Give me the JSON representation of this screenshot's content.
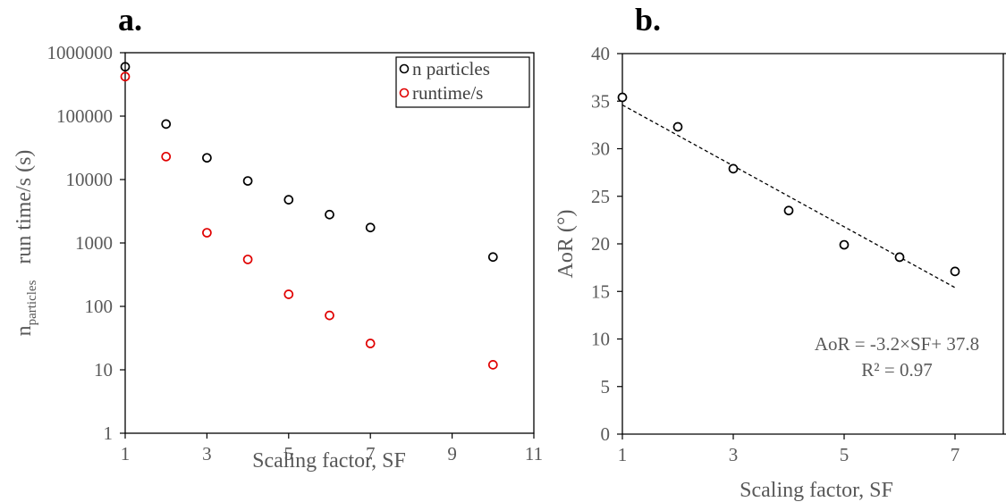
{
  "chart_data": [
    {
      "panel_label": "a.",
      "type": "scatter",
      "xlabel": "Scaling factor, SF",
      "ylabel_main": "n",
      "ylabel_sub": "particles",
      "ylabel_rest": "run time/s (s)",
      "xlim": [
        1,
        11
      ],
      "xticks": [
        1,
        3,
        5,
        7,
        9,
        11
      ],
      "ylim": [
        1,
        1000000
      ],
      "yscale": "log",
      "yticks": [
        1,
        10,
        100,
        1000,
        10000,
        100000,
        1000000
      ],
      "ytick_labels": [
        "1",
        "10",
        "100",
        "1000",
        "10000",
        "100000",
        "1000000"
      ],
      "grid": false,
      "legend_position": "top-right",
      "series": [
        {
          "name": "n particles",
          "color": "#000000",
          "marker": "open-circle",
          "x": [
            1,
            2,
            3,
            4,
            5,
            6,
            7,
            10
          ],
          "y": [
            600000,
            75000,
            22000,
            9500,
            4800,
            2800,
            1750,
            600
          ]
        },
        {
          "name": "runtime/s",
          "color": "#e00000",
          "marker": "open-circle",
          "x": [
            1,
            2,
            3,
            4,
            5,
            6,
            7,
            10
          ],
          "y": [
            420000,
            23000,
            1450,
            550,
            155,
            72,
            26,
            12
          ]
        }
      ]
    },
    {
      "panel_label": "b.",
      "type": "scatter",
      "xlabel": "Scaling factor, SF",
      "ylabel": "AoR (°)",
      "xlim": [
        1,
        8
      ],
      "xticks": [
        1,
        3,
        5,
        7
      ],
      "ylim": [
        0,
        40
      ],
      "yticks": [
        0,
        5,
        10,
        15,
        20,
        25,
        30,
        35,
        40
      ],
      "grid": false,
      "series": [
        {
          "name": "",
          "color": "#000000",
          "marker": "open-circle",
          "x": [
            1,
            2,
            3,
            4,
            5,
            6,
            7
          ],
          "y": [
            35.4,
            32.3,
            27.9,
            23.5,
            19.9,
            18.6,
            17.1
          ]
        }
      ],
      "trendline": {
        "type": "linear",
        "slope": -3.2,
        "intercept": 37.8,
        "x_range": [
          1,
          7
        ],
        "style": "dashed",
        "color": "#000000"
      },
      "annotations": [
        "AoR = -3.2×SF+ 37.8",
        "R² = 0.97"
      ]
    }
  ]
}
